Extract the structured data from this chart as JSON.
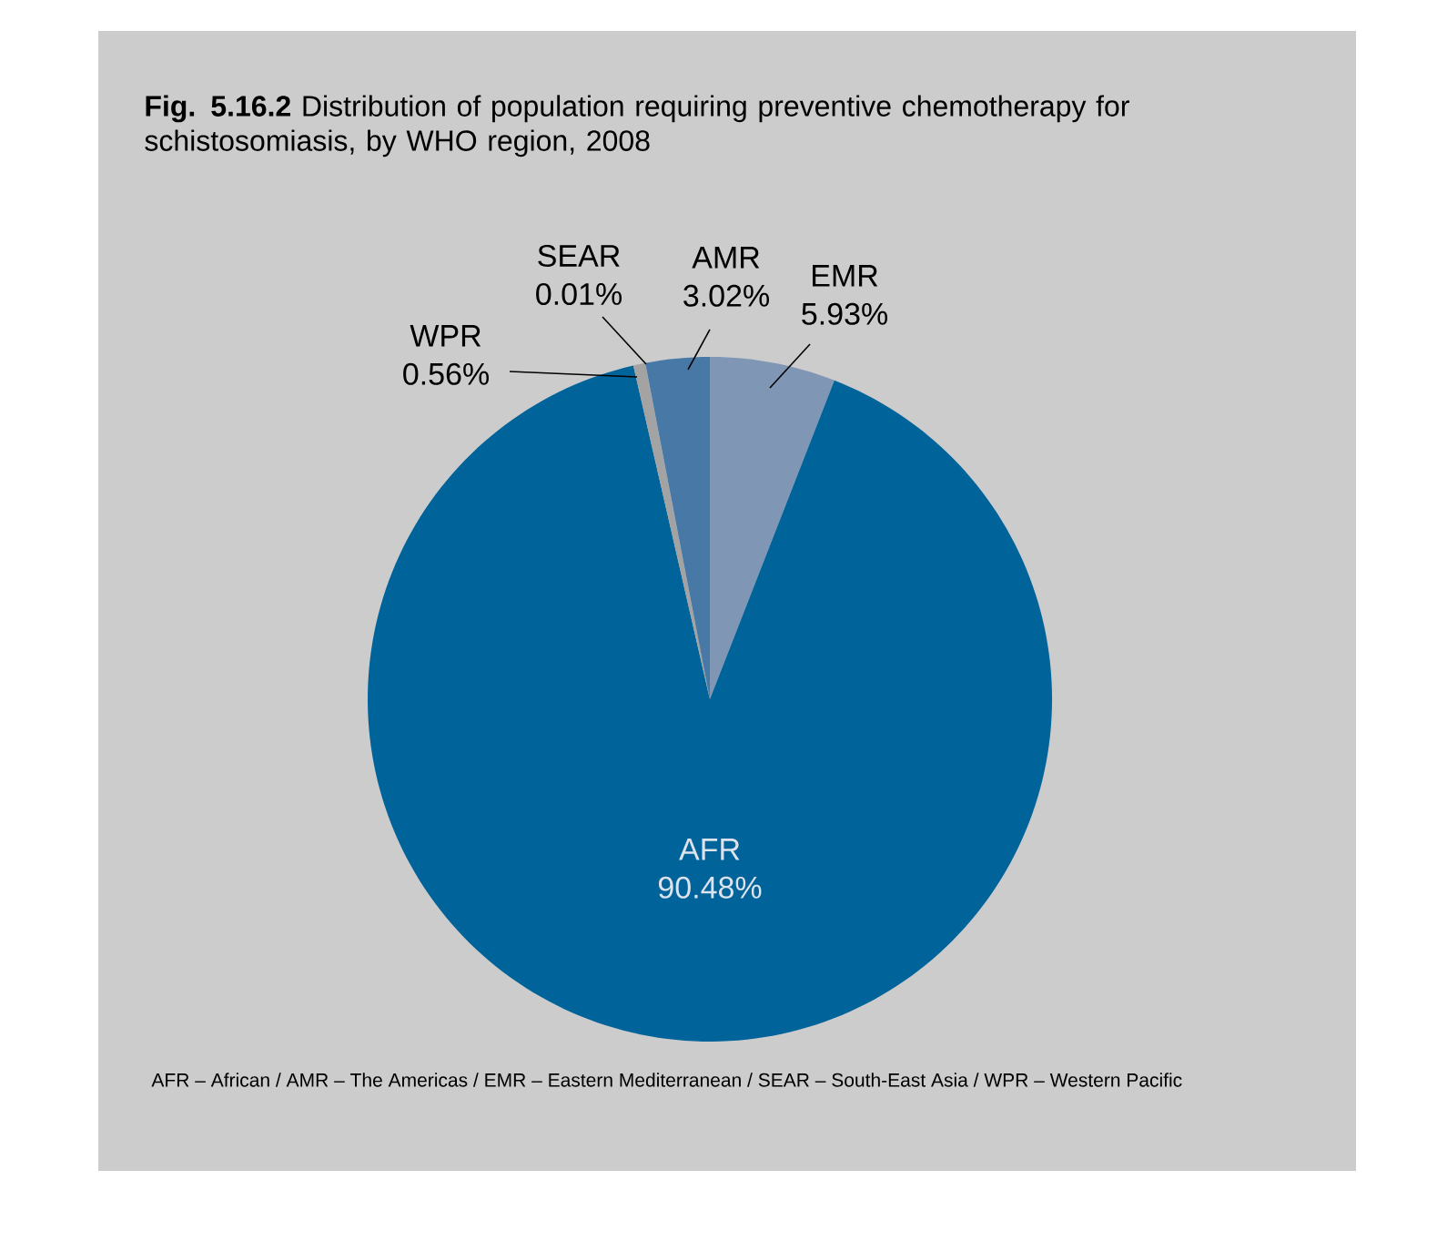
{
  "chart_data": {
    "type": "pie",
    "title": "**Fig. 5.16.2** Distribution of population requiring preventive chemotherapy for schistosomiasis, by WHO region, 2008",
    "categories": [
      "EMR",
      "AFR",
      "WPR",
      "SEAR",
      "AMR"
    ],
    "values": [
      5.93,
      90.48,
      0.56,
      0.01,
      3.02
    ],
    "value_labels": [
      "5.93%",
      "90.48%",
      "0.56%",
      "0.01%",
      "3.02%"
    ],
    "colors": [
      "#7f97b5",
      "#00639a",
      "#a3a3a3",
      "#8faac8",
      "#4878a6"
    ],
    "annotations": [
      "AFR – African / AMR – The Americas / EMR – Eastern Mediterranean / SEAR – South-East Asia / WPR – Western Pacific"
    ]
  }
}
